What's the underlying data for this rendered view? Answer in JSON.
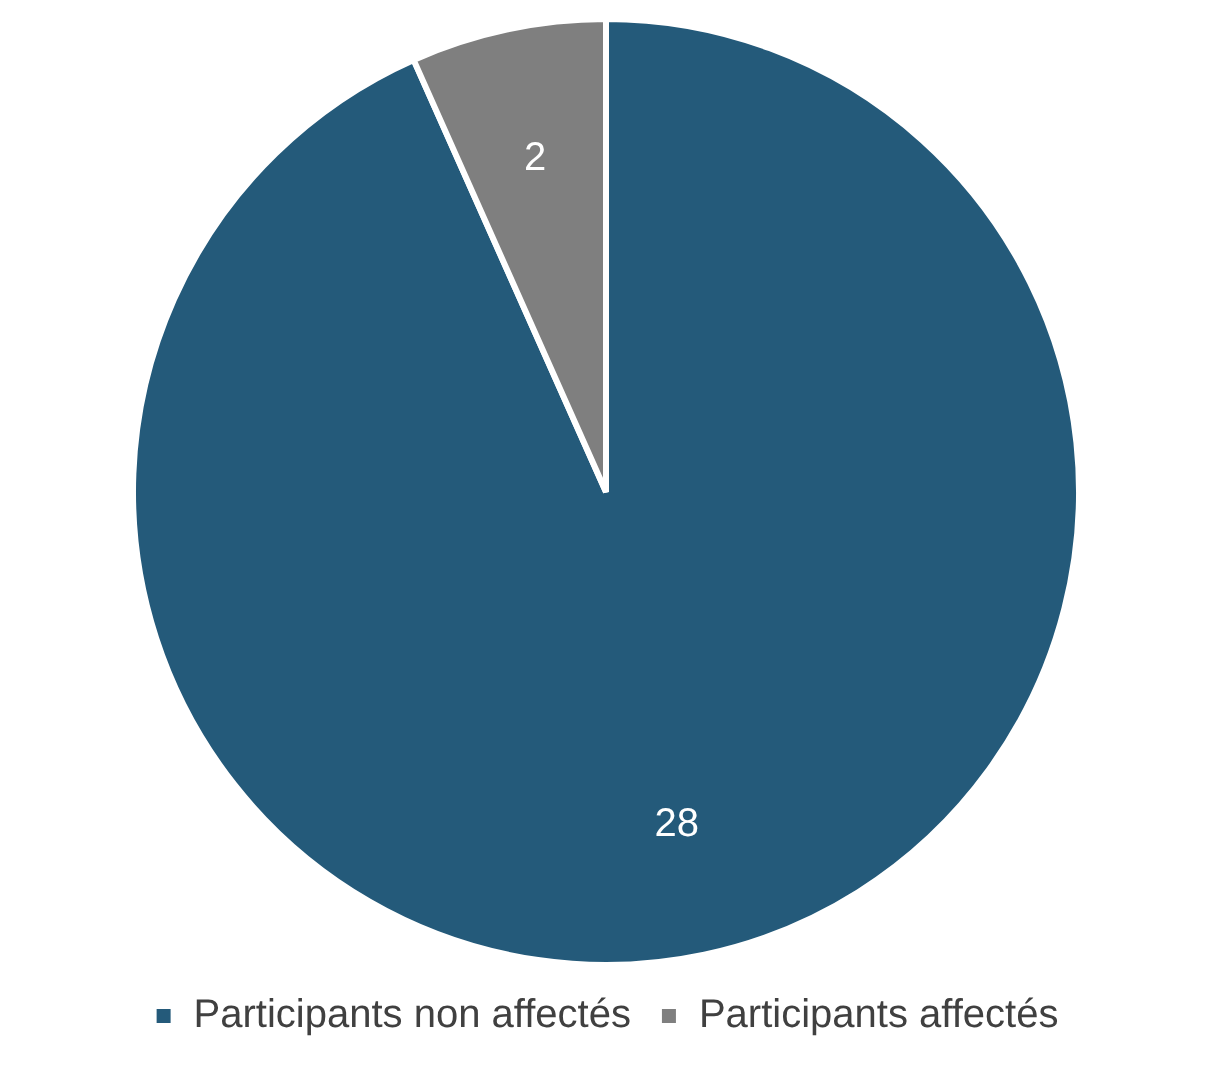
{
  "chart_data": {
    "type": "pie",
    "categories": [
      "Participants non affectés",
      "Participants affectés"
    ],
    "values": [
      28,
      2
    ],
    "colors": [
      "#245a7a",
      "#7f7f7f"
    ],
    "data_labels": true,
    "legend": "bottom"
  }
}
